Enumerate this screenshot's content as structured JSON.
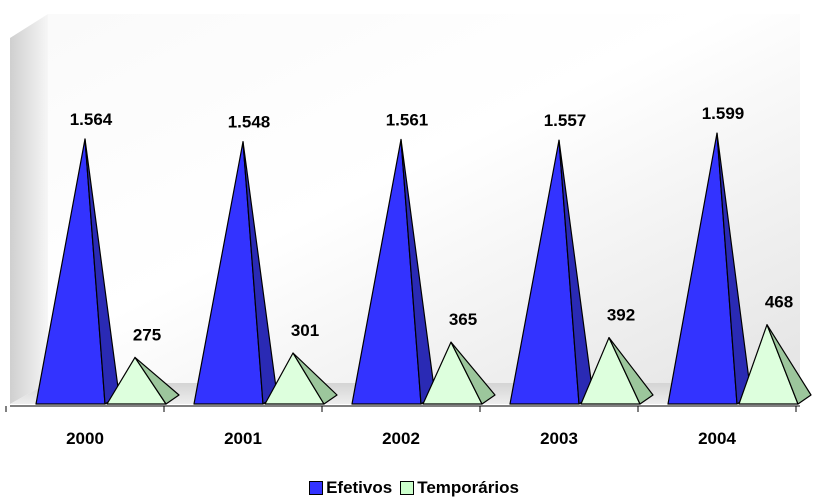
{
  "chart_data": {
    "type": "bar",
    "bar_shape": "pyramid",
    "categories": [
      "2000",
      "2001",
      "2002",
      "2003",
      "2004"
    ],
    "series": [
      {
        "name": "Efetivos",
        "values": [
          1564,
          1548,
          1561,
          1557,
          1599
        ],
        "labels": [
          "1.564",
          "1.548",
          "1.561",
          "1.557",
          "1.599"
        ],
        "color": "#3333FF"
      },
      {
        "name": "Temporários",
        "values": [
          275,
          301,
          365,
          392,
          468
        ],
        "labels": [
          "275",
          "301",
          "365",
          "392",
          "468"
        ],
        "color": "#CCFFCC"
      }
    ],
    "title": "",
    "xlabel": "",
    "ylabel": "",
    "ylim": [
      0,
      1800
    ],
    "grid": false,
    "legend": "bottom"
  }
}
